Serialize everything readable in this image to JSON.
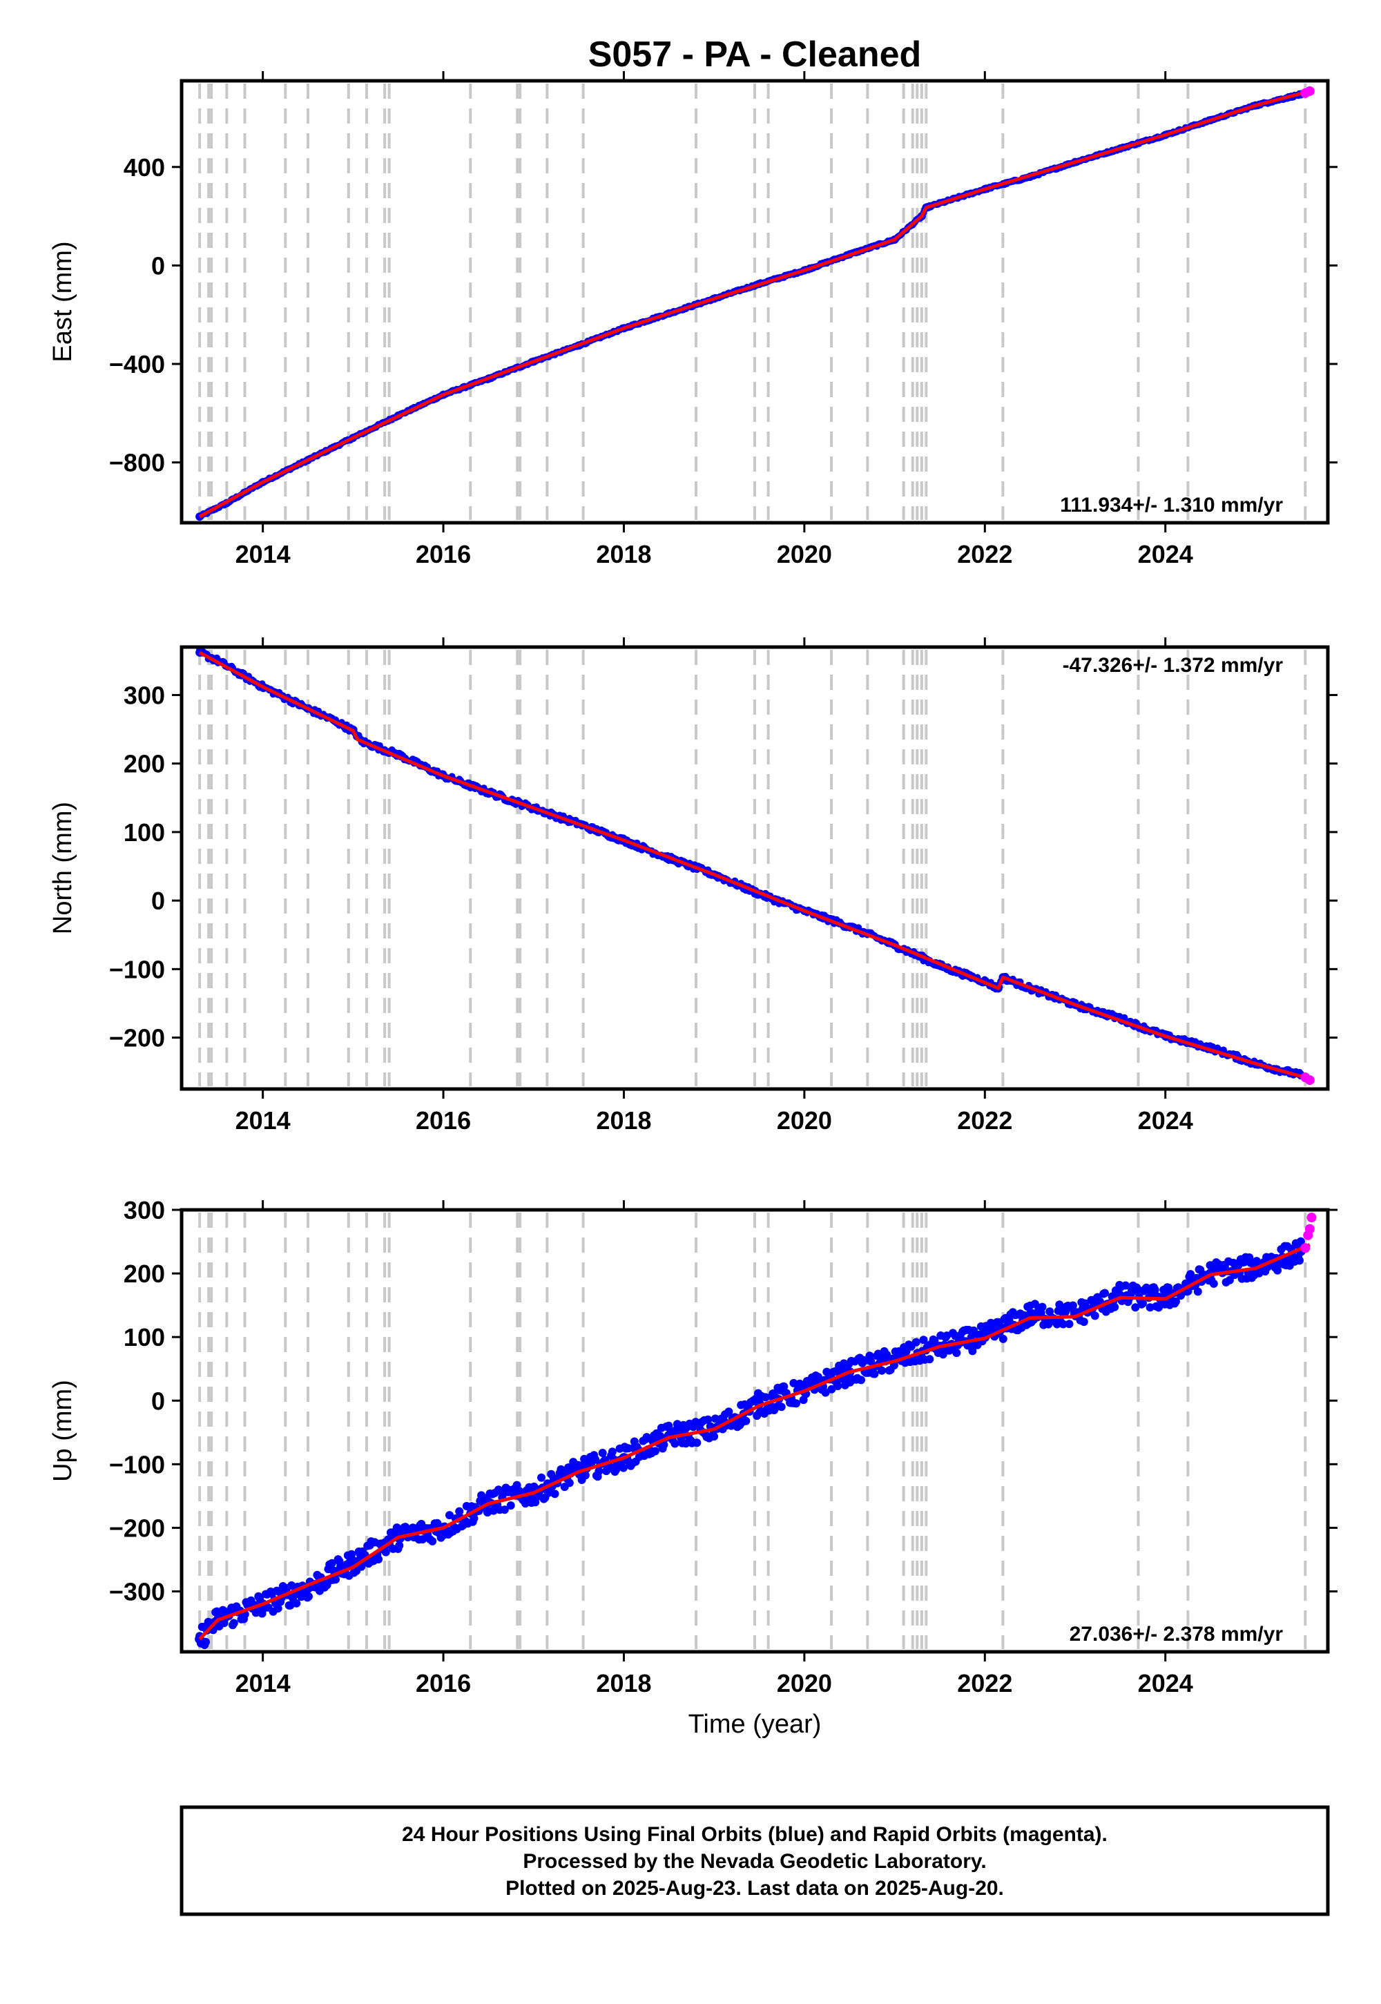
{
  "title": "S057  - PA - Cleaned",
  "footer": {
    "lines": [
      "24 Hour Positions Using Final Orbits (blue) and Rapid Orbits (magenta).",
      "Processed by the Nevada Geodetic Laboratory.",
      "Plotted on 2025-Aug-23. Last data on 2025-Aug-20."
    ]
  },
  "colors": {
    "final_orbits": "#0000ff",
    "rapid_orbits": "#ff00ff",
    "model_fit": "#ff0000",
    "event_lines": "#c8c8c8",
    "frame": "#000000"
  },
  "chart_data": [
    {
      "type": "scatter",
      "ylabel": "East (mm)",
      "xlabel": "",
      "xlim": [
        2013.1,
        2025.8
      ],
      "ylim": [
        -1045,
        750
      ],
      "xticks": [
        2014,
        2016,
        2018,
        2020,
        2022,
        2024
      ],
      "yticks": [
        -800,
        -400,
        0,
        400
      ],
      "grid": false,
      "annotation": "111.934+/- 1.310 mm/yr",
      "annotation_position": "bottom-right",
      "series": [
        {
          "name": "Final Orbits (blue)",
          "kind": "points",
          "color": "#0000ff",
          "x": [
            2013.3,
            2013.6,
            2014.0,
            2014.5,
            2015.0,
            2015.5,
            2016.0,
            2016.5,
            2017.0,
            2017.5,
            2018.0,
            2018.5,
            2019.0,
            2019.5,
            2020.0,
            2020.5,
            2021.0,
            2021.3,
            2021.35,
            2022.0,
            2022.5,
            2023.0,
            2023.5,
            2024.0,
            2024.5,
            2025.0,
            2025.5
          ],
          "y": [
            -1020,
            -965,
            -880,
            -790,
            -700,
            -610,
            -525,
            -460,
            -390,
            -325,
            -255,
            -195,
            -135,
            -75,
            -20,
            45,
            105,
            200,
            235,
            310,
            360,
            420,
            475,
            530,
            590,
            650,
            695
          ]
        },
        {
          "name": "Rapid Orbits (magenta)",
          "kind": "points",
          "color": "#ff00ff",
          "x": [
            2025.55,
            2025.6
          ],
          "y": [
            700,
            708
          ]
        },
        {
          "name": "Model fit",
          "kind": "line",
          "color": "#ff0000",
          "x": [
            2013.3,
            2014.0,
            2014.5,
            2015.0,
            2016.0,
            2017.0,
            2018.0,
            2019.0,
            2020.0,
            2021.0,
            2021.3,
            2021.35,
            2022.0,
            2023.0,
            2024.0,
            2025.0,
            2025.6
          ],
          "y": [
            -1020,
            -880,
            -790,
            -700,
            -525,
            -390,
            -255,
            -135,
            -20,
            105,
            200,
            235,
            310,
            420,
            530,
            650,
            708
          ]
        }
      ]
    },
    {
      "type": "scatter",
      "ylabel": "North (mm)",
      "xlabel": "",
      "xlim": [
        2013.1,
        2025.8
      ],
      "ylim": [
        -275,
        370
      ],
      "xticks": [
        2014,
        2016,
        2018,
        2020,
        2022,
        2024
      ],
      "yticks": [
        -200,
        -100,
        0,
        100,
        200,
        300
      ],
      "grid": false,
      "annotation": "-47.326+/- 1.372 mm/yr",
      "annotation_position": "top-right",
      "series": [
        {
          "name": "Final Orbits (blue)",
          "kind": "points",
          "color": "#0000ff",
          "x": [
            2013.3,
            2013.5,
            2014.0,
            2014.5,
            2014.8,
            2015.0,
            2015.1,
            2015.5,
            2016.0,
            2016.5,
            2017.0,
            2017.5,
            2018.0,
            2018.5,
            2019.0,
            2019.5,
            2020.0,
            2020.5,
            2021.0,
            2021.5,
            2022.0,
            2022.15,
            2022.2,
            2022.5,
            2023.0,
            2023.5,
            2024.0,
            2024.5,
            2025.0,
            2025.5
          ],
          "y": [
            362,
            350,
            312,
            280,
            262,
            248,
            232,
            213,
            182,
            158,
            135,
            112,
            88,
            62,
            38,
            10,
            -15,
            -38,
            -65,
            -95,
            -118,
            -128,
            -112,
            -128,
            -152,
            -172,
            -198,
            -215,
            -238,
            -255
          ]
        },
        {
          "name": "Rapid Orbits (magenta)",
          "kind": "points",
          "color": "#ff00ff",
          "x": [
            2025.55,
            2025.6
          ],
          "y": [
            -258,
            -262
          ]
        },
        {
          "name": "Model fit",
          "kind": "line",
          "color": "#ff0000",
          "x": [
            2013.3,
            2014.0,
            2014.5,
            2015.0,
            2015.05,
            2016.0,
            2017.0,
            2018.0,
            2019.0,
            2020.0,
            2021.0,
            2022.15,
            2022.2,
            2023.0,
            2024.0,
            2025.0,
            2025.6
          ],
          "y": [
            362,
            312,
            280,
            248,
            235,
            182,
            135,
            88,
            38,
            -15,
            -65,
            -128,
            -112,
            -152,
            -198,
            -238,
            -260
          ]
        }
      ]
    },
    {
      "type": "scatter",
      "ylabel": "Up (mm)",
      "xlabel": "Time (year)",
      "xlim": [
        2013.1,
        2025.8
      ],
      "ylim": [
        -395,
        300
      ],
      "xticks": [
        2014,
        2016,
        2018,
        2020,
        2022,
        2024
      ],
      "yticks": [
        -300,
        -200,
        -100,
        0,
        100,
        200,
        300
      ],
      "grid": false,
      "annotation": "27.036+/- 2.378 mm/yr",
      "annotation_position": "bottom-right",
      "series": [
        {
          "name": "Final Orbits (blue)",
          "kind": "points",
          "color": "#0000ff",
          "x": [
            2013.3,
            2013.5,
            2014.0,
            2014.5,
            2014.8,
            2015.0,
            2015.5,
            2016.0,
            2016.5,
            2017.0,
            2017.5,
            2018.0,
            2018.5,
            2019.0,
            2019.5,
            2020.0,
            2020.5,
            2021.0,
            2021.5,
            2022.0,
            2022.5,
            2023.0,
            2023.5,
            2024.0,
            2024.5,
            2025.0,
            2025.5
          ],
          "y": [
            -375,
            -345,
            -320,
            -295,
            -270,
            -255,
            -215,
            -200,
            -160,
            -145,
            -110,
            -90,
            -55,
            -45,
            -5,
            15,
            45,
            65,
            85,
            100,
            135,
            135,
            165,
            160,
            200,
            210,
            235
          ]
        },
        {
          "name": "Rapid Orbits (magenta)",
          "kind": "points",
          "color": "#ff00ff",
          "x": [
            2025.55,
            2025.58,
            2025.6,
            2025.62
          ],
          "y": [
            240,
            260,
            270,
            288
          ]
        },
        {
          "name": "Model fit",
          "kind": "line",
          "color": "#ff0000",
          "x": [
            2013.3,
            2013.5,
            2014.0,
            2014.5,
            2015.0,
            2015.5,
            2016.0,
            2016.5,
            2017.0,
            2017.5,
            2018.0,
            2018.5,
            2019.0,
            2019.5,
            2020.0,
            2020.5,
            2021.0,
            2021.5,
            2022.0,
            2022.5,
            2023.0,
            2023.5,
            2024.0,
            2024.5,
            2025.0,
            2025.6
          ],
          "y": [
            -375,
            -345,
            -320,
            -290,
            -262,
            -215,
            -200,
            -162,
            -145,
            -112,
            -90,
            -58,
            -45,
            -8,
            15,
            45,
            62,
            85,
            98,
            130,
            132,
            162,
            160,
            198,
            208,
            245
          ]
        }
      ]
    }
  ],
  "event_lines_x": [
    2013.3,
    2013.4,
    2013.43,
    2013.6,
    2013.8,
    2014.25,
    2014.5,
    2014.95,
    2015.15,
    2015.35,
    2015.4,
    2016.3,
    2016.82,
    2016.85,
    2017.15,
    2017.55,
    2018.8,
    2019.45,
    2019.6,
    2020.3,
    2020.7,
    2021.1,
    2021.2,
    2021.25,
    2021.3,
    2021.35,
    2022.2,
    2023.7,
    2024.25,
    2025.55
  ]
}
